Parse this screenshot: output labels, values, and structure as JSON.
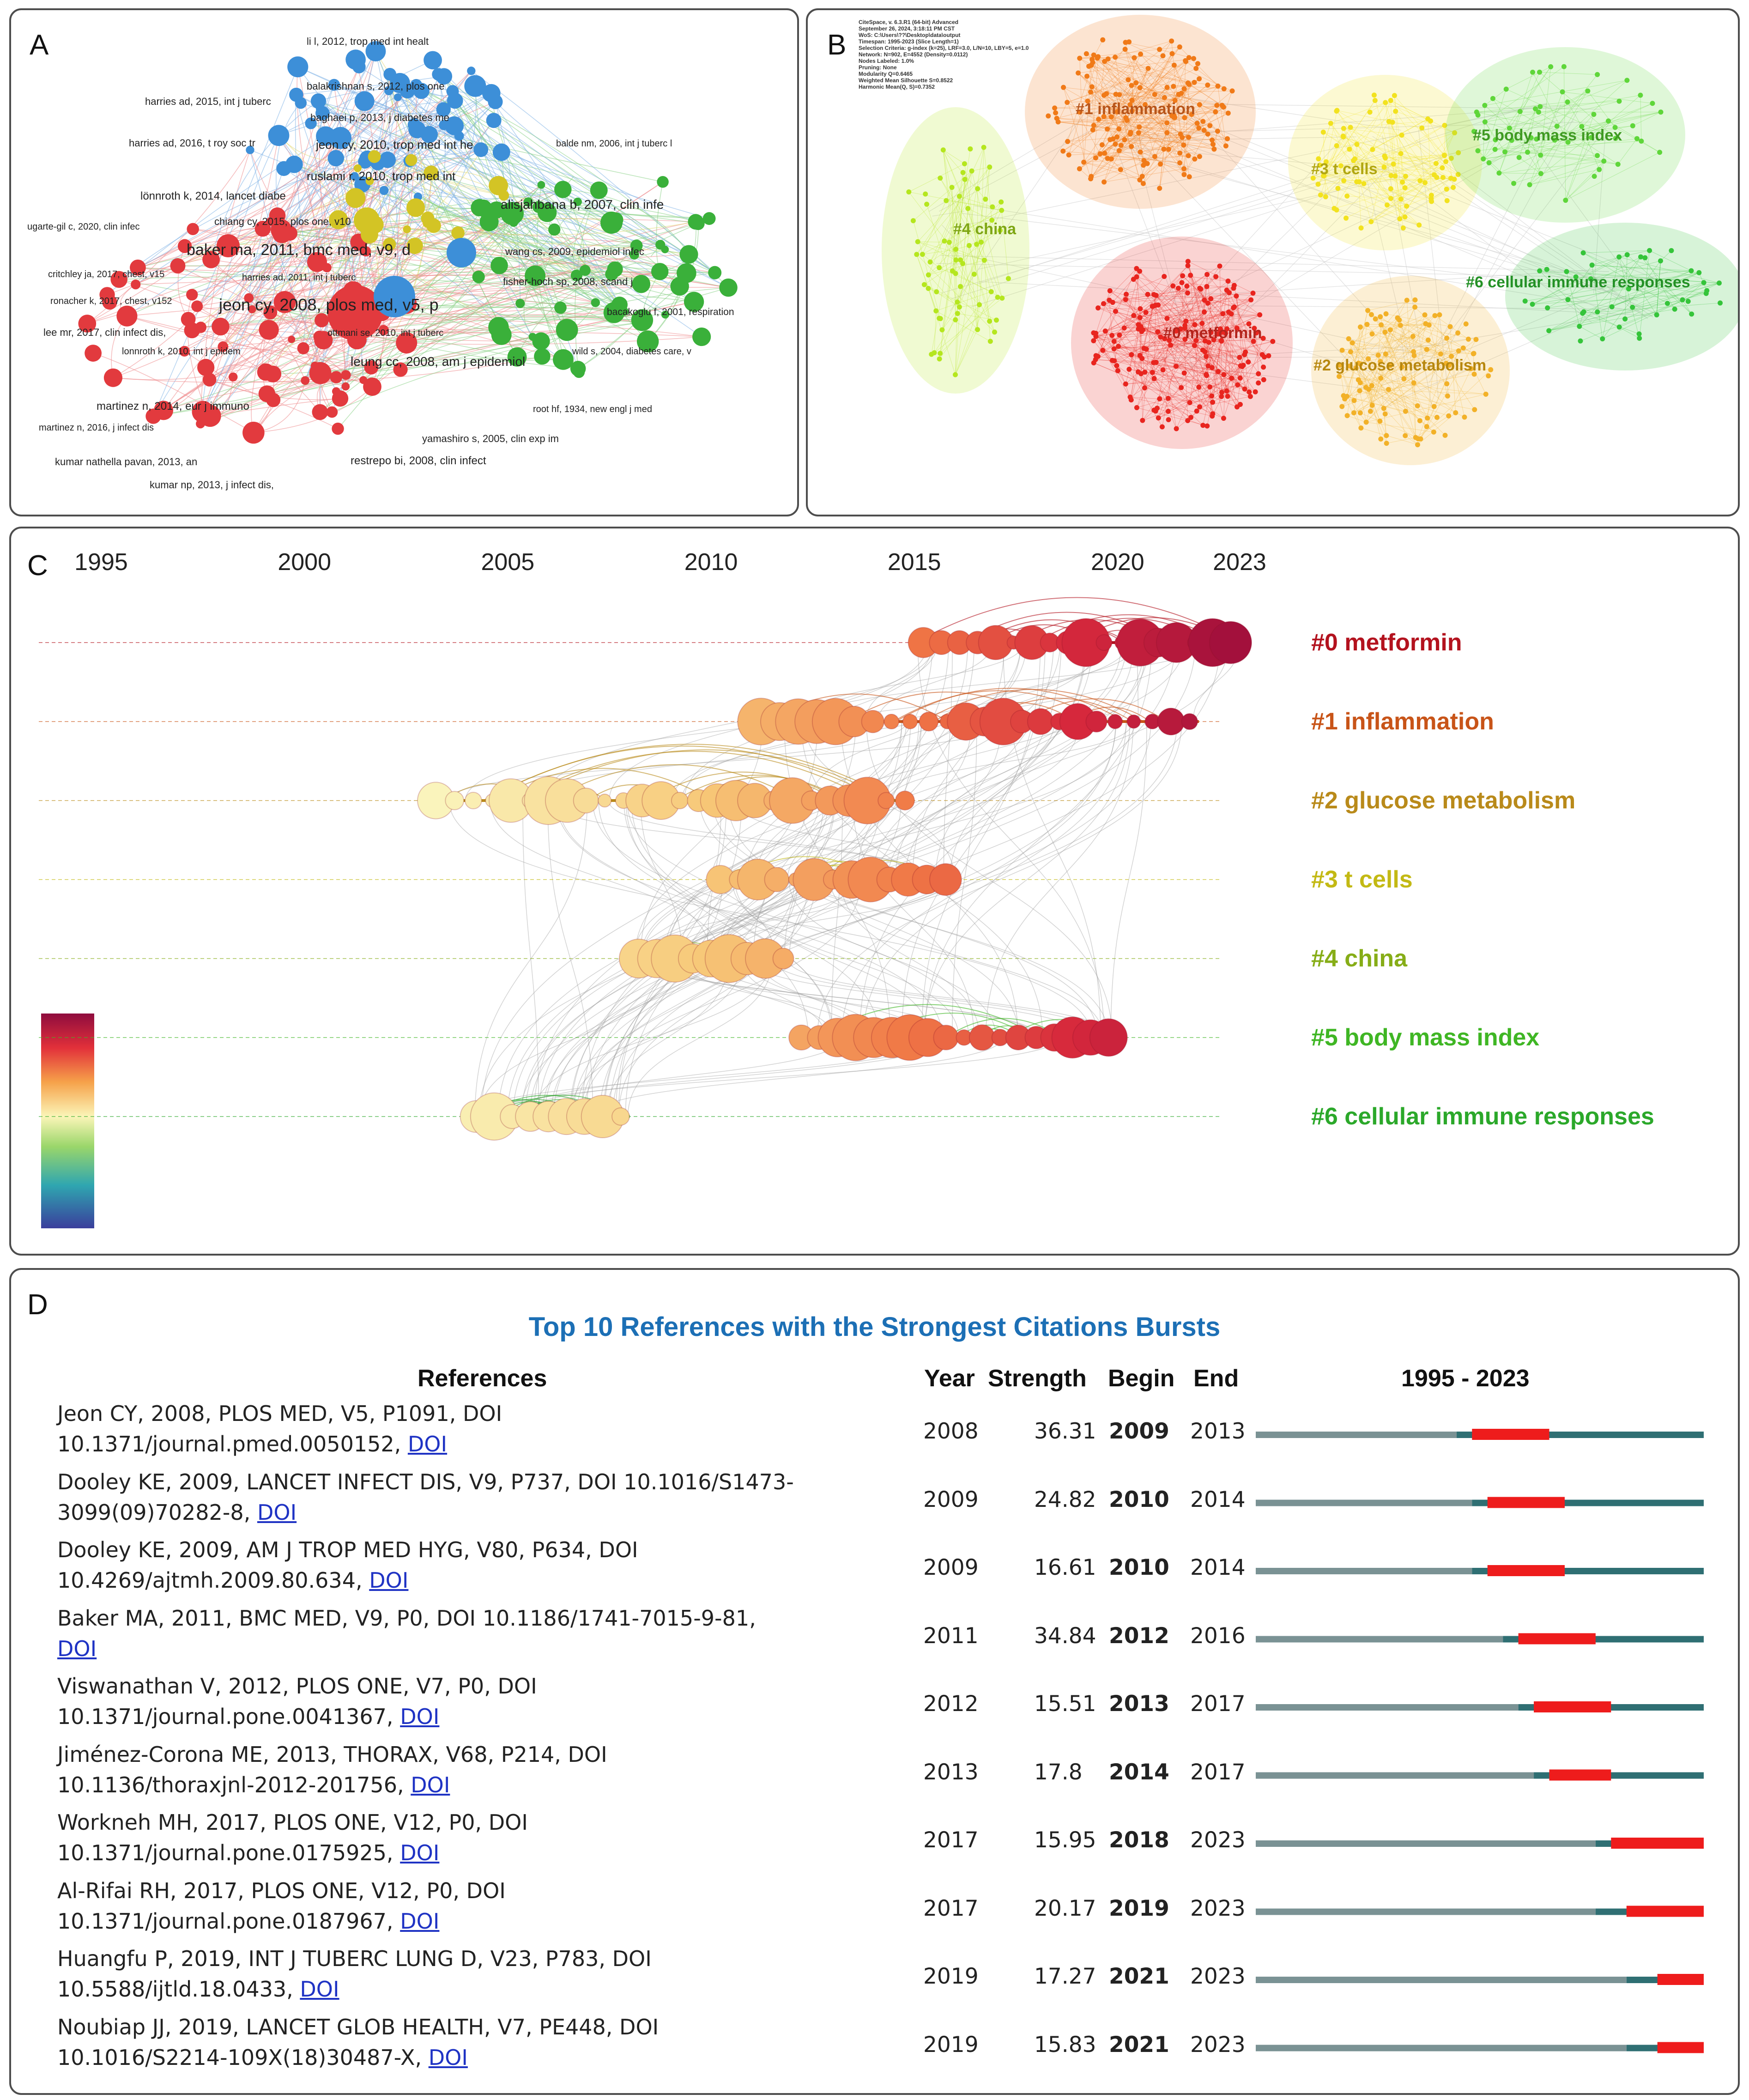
{
  "panels": {
    "a": "A",
    "b": "B",
    "c": "C",
    "d": "D"
  },
  "panelA": {
    "labels": [
      {
        "text": "li l, 2012, trop med int healt",
        "color": "#1f5fa8"
      },
      {
        "text": "balakrishnan s, 2012, plos one",
        "color": "#1f5fa8"
      },
      {
        "text": "harries ad, 2015, int j tuberc",
        "color": "#1f5fa8"
      },
      {
        "text": "baghaei p, 2013, j diabetes me",
        "color": "#1f5fa8"
      },
      {
        "text": "harries ad, 2016, t roy soc tr",
        "color": "#1f5fa8"
      },
      {
        "text": "jeon cy, 2010, trop med int he",
        "color": "#1f5fa8"
      },
      {
        "text": "balde nm, 2006, int j tuberc l",
        "color": "#1f5fa8"
      },
      {
        "text": "ruslami r, 2010, trop med int",
        "color": "#1f5fa8"
      },
      {
        "text": "lönnroth k, 2014, lancet diabe",
        "color": "#c8202a"
      },
      {
        "text": "alisjahbana b, 2007, clin infe",
        "color": "#2a8a22"
      },
      {
        "text": "chiang cy, 2015, plos one, v10",
        "color": "#1f5fa8"
      },
      {
        "text": "ugarte-gil c, 2020, clin infec",
        "color": "#c8202a"
      },
      {
        "text": "baker ma, 2011, bmc med, v9, d",
        "color": "#1f5fa8"
      },
      {
        "text": "wang cs, 2009, epidemiol infec",
        "color": "#2a8a22"
      },
      {
        "text": "critchley ja, 2017, chest, v15",
        "color": "#c8202a"
      },
      {
        "text": "harries ad, 2011, int j tuberc",
        "color": "#1f5fa8"
      },
      {
        "text": "ronacher k, 2017, chest, v152",
        "color": "#c8202a"
      },
      {
        "text": "fisher-hoch sp, 2008, scand j",
        "color": "#2a8a22"
      },
      {
        "text": "jeon cy, 2008, plos med, v5, p",
        "color": "#c8202a"
      },
      {
        "text": "bacakoglu f, 2001, respiration",
        "color": "#2a8a22"
      },
      {
        "text": "lee mr, 2017, clin infect dis,",
        "color": "#c8202a"
      },
      {
        "text": "ottmani se, 2010, int j tuberc",
        "color": "#1f5fa8"
      },
      {
        "text": "lonnroth k, 2010, int j epidem",
        "color": "#c8202a"
      },
      {
        "text": "wild s, 2004, diabetes care, v",
        "color": "#2a8a22"
      },
      {
        "text": "leung cc, 2008, am j epidemiol",
        "color": "#2a8a22"
      },
      {
        "text": "martinez n, 2014, eur j immuno",
        "color": "#c8202a"
      },
      {
        "text": "root hf, 1934, new engl j med",
        "color": "#2a8a22"
      },
      {
        "text": "martinez n, 2016, j infect dis",
        "color": "#c8202a"
      },
      {
        "text": "yamashiro s, 2005, clin exp im",
        "color": "#2a8a22"
      },
      {
        "text": "kumar nathella pavan, 2013, an",
        "color": "#c8202a"
      },
      {
        "text": "restrepo bi, 2008, clin infect",
        "color": "#c8202a"
      },
      {
        "text": "kumar np, 2013, j infect dis,",
        "color": "#c8202a"
      }
    ]
  },
  "panelB": {
    "info": [
      "CiteSpace, v. 6.3.R1 (64-bit) Advanced",
      "September 26, 2024, 3:18:11 PM CST",
      "WoS: C:\\Users\\??\\Desktop\\data\\output",
      "Timespan: 1995-2023 (Slice Length=1)",
      "Selection Criteria: g-index (k=25), LRF=3.0, L/N=10, LBY=5, e=1.0",
      "Network: N=902, E=4552 (Density=0.0112)",
      "Nodes Labeled: 1.0%",
      "Pruning: None",
      "Modularity Q=0.6465",
      "Weighted Mean Silhouette S=0.8522",
      "Harmonic Mean(Q, S)=0.7352"
    ],
    "clusters": [
      {
        "label": "#0 metformin",
        "color": "#e8251f",
        "text_color": "#b3241c"
      },
      {
        "label": "#1 inflammation",
        "color": "#f07a18",
        "text_color": "#b8551a"
      },
      {
        "label": "#2 glucose metabolism",
        "color": "#f2b128",
        "text_color": "#b7870e"
      },
      {
        "label": "#3 t cells",
        "color": "#f2e21f",
        "text_color": "#b0a612"
      },
      {
        "label": "#4 china",
        "color": "#b5e61e",
        "text_color": "#7ea614"
      },
      {
        "label": "#5 body mass index",
        "color": "#5fd63a",
        "text_color": "#3f9a22"
      },
      {
        "label": "#6 cellular immune responses",
        "color": "#35c43a",
        "text_color": "#249126"
      }
    ]
  },
  "chart_data": {
    "type": "timeline",
    "title": "",
    "x_range": [
      1995,
      2023
    ],
    "ticks": [
      1995,
      2000,
      2005,
      2010,
      2015,
      2020,
      2023
    ],
    "clusters": [
      {
        "label": "#0 metformin",
        "color": "#b3121e",
        "span": [
          2015,
          2023
        ]
      },
      {
        "label": "#1 inflammation",
        "color": "#c85418",
        "span": [
          2011,
          2022
        ]
      },
      {
        "label": "#2 glucose metabolism",
        "color": "#b98a1a",
        "span": [
          2003,
          2015
        ]
      },
      {
        "label": "#3 t cells",
        "color": "#c3b914",
        "span": [
          2010,
          2016
        ]
      },
      {
        "label": "#4 china",
        "color": "#86ad17",
        "span": [
          2008,
          2012
        ]
      },
      {
        "label": "#5 body mass index",
        "color": "#3fb624",
        "span": [
          2012,
          2020
        ]
      },
      {
        "label": "#6 cellular immune responses",
        "color": "#2ba82a",
        "span": [
          2004,
          2008
        ]
      }
    ]
  },
  "panelD": {
    "title": "Top 10 References with the Strongest Citations Bursts",
    "headers": {
      "references": "References",
      "year": "Year",
      "strength": "Strength",
      "begin": "Begin",
      "end": "End",
      "range": "1995 - 2023"
    },
    "range": [
      1995,
      2023
    ],
    "refs": [
      {
        "line1": "Jeon CY, 2008, PLOS MED, V5, P1091, DOI",
        "line2": "10.1371/journal.pmed.0050152,",
        "doi": "DOI",
        "year": "2008",
        "strength": "36.31",
        "begin": "2009",
        "end": "2013"
      },
      {
        "line1": "Dooley KE, 2009, LANCET INFECT DIS, V9, P737, DOI 10.1016/S1473-",
        "line2": "3099(09)70282-8,",
        "doi": "DOI",
        "year": "2009",
        "strength": "24.82",
        "begin": "2010",
        "end": "2014"
      },
      {
        "line1": "Dooley KE, 2009, AM J TROP MED HYG, V80, P634, DOI",
        "line2": "10.4269/ajtmh.2009.80.634,",
        "doi": "DOI",
        "year": "2009",
        "strength": "16.61",
        "begin": "2010",
        "end": "2014"
      },
      {
        "line1": "Baker MA, 2011, BMC MED, V9, P0, DOI 10.1186/1741-7015-9-81,",
        "line2": "",
        "doi": "DOI",
        "year": "2011",
        "strength": "34.84",
        "begin": "2012",
        "end": "2016"
      },
      {
        "line1": "Viswanathan V, 2012, PLOS ONE, V7, P0, DOI",
        "line2": "10.1371/journal.pone.0041367,",
        "doi": "DOI",
        "year": "2012",
        "strength": "15.51",
        "begin": "2013",
        "end": "2017"
      },
      {
        "line1": "Jiménez-Corona ME, 2013, THORAX, V68, P214, DOI",
        "line2": "10.1136/thoraxjnl-2012-201756,",
        "doi": "DOI",
        "year": "2013",
        "strength": "17.8",
        "begin": "2014",
        "end": "2017"
      },
      {
        "line1": "Workneh MH, 2017, PLOS ONE, V12, P0, DOI",
        "line2": "10.1371/journal.pone.0175925,",
        "doi": "DOI",
        "year": "2017",
        "strength": "15.95",
        "begin": "2018",
        "end": "2023"
      },
      {
        "line1": "Al-Rifai RH, 2017, PLOS ONE, V12, P0, DOI",
        "line2": "10.1371/journal.pone.0187967,",
        "doi": "DOI",
        "year": "2017",
        "strength": "20.17",
        "begin": "2019",
        "end": "2023"
      },
      {
        "line1": "Huangfu P, 2019, INT J TUBERC LUNG D, V23, P783, DOI",
        "line2": "10.5588/ijtld.18.0433,",
        "doi": "DOI",
        "year": "2019",
        "strength": "17.27",
        "begin": "2021",
        "end": "2023"
      },
      {
        "line1": "Noubiap JJ, 2019, LANCET GLOB HEALTH, V7, PE448, DOI",
        "line2": "10.1016/S2214-109X(18)30487-X,",
        "doi": "DOI",
        "year": "2019",
        "strength": "15.83",
        "begin": "2021",
        "end": "2023"
      }
    ]
  }
}
